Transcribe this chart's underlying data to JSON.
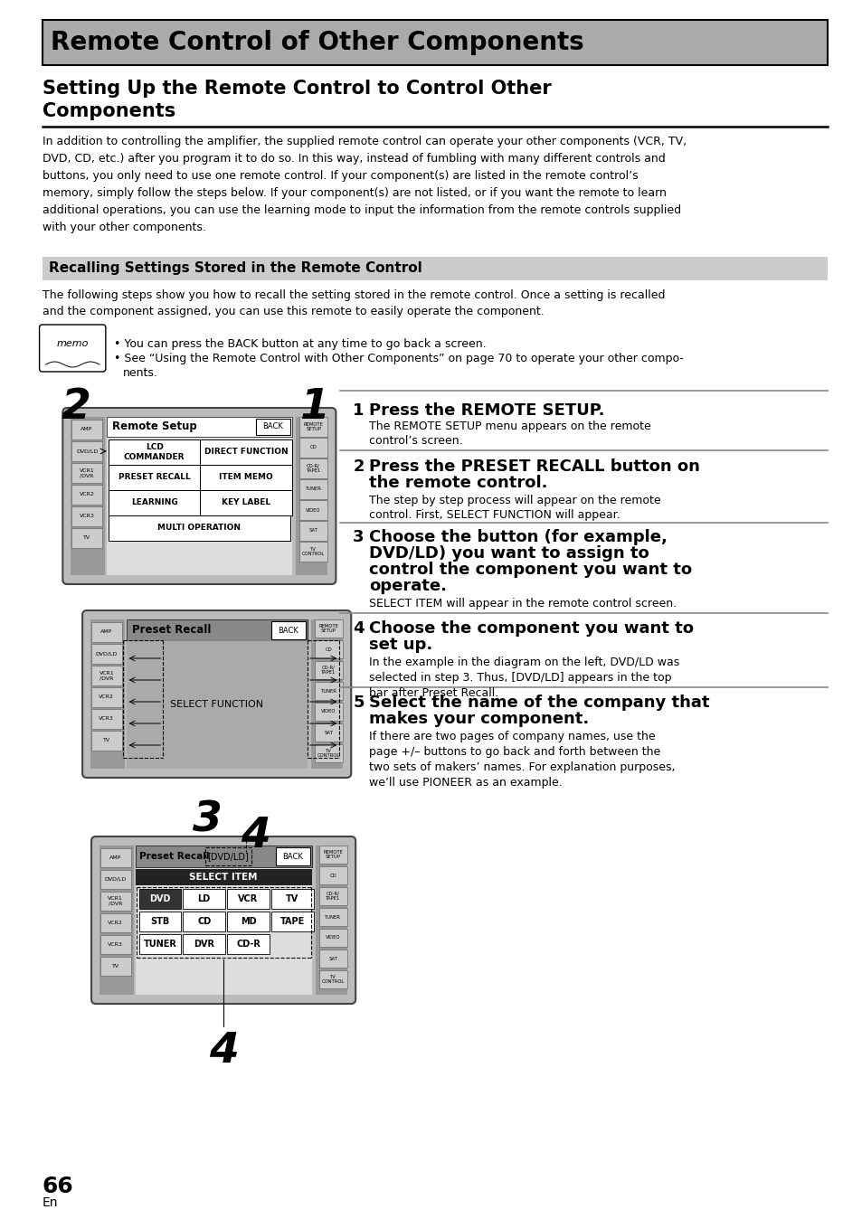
{
  "title": "Remote Control of Other Components",
  "section_title": "Recalling Settings Stored in the Remote Control",
  "body_text_lines": [
    "In addition to controlling the amplifier, the supplied remote control can operate your other components (VCR, TV,",
    "DVD, CD, etc.) after you program it to do so. In this way, instead of fumbling with many different controls and",
    "buttons, you only need to use one remote control. If your component(s) are listed in the remote control’s",
    "memory, simply follow the steps below. If your component(s) are not listed, or if you want the remote to learn",
    "additional operations, you can use the learning mode to input the information from the remote controls supplied",
    "with your other components."
  ],
  "section_desc_lines": [
    "The following steps show you how to recall the setting stored in the remote control. Once a setting is recalled",
    "and the component assigned, you can use this remote to easily operate the component."
  ],
  "memo_bullet1": "You can press the BACK button at any time to go back a screen.",
  "memo_bullet2_a": "See “Using the Remote Control with Other Components” on page 70 to operate your other compo-",
  "memo_bullet2_b": "nents.",
  "step1_head": "Press the REMOTE SETUP.",
  "step1_desc1": "The REMOTE SETUP menu appears on the remote",
  "step1_desc2": "control’s screen.",
  "step2_head1": "Press the PRESET RECALL button on",
  "step2_head2": "the remote control.",
  "step2_desc1": "The step by step process will appear on the remote",
  "step2_desc2": "control. First, SELECT FUNCTION will appear.",
  "step3_head1": "Choose the button (for example,",
  "step3_head2": "DVD/LD) you want to assign to",
  "step3_head3": "control the component you want to",
  "step3_head4": "operate.",
  "step3_desc": "SELECT ITEM will appear in the remote control screen.",
  "step4_head1": "Choose the component you want to",
  "step4_head2": "set up.",
  "step4_desc1": "In the example in the diagram on the left, DVD/LD was",
  "step4_desc2": "selected in step 3. Thus, [DVD/LD] appears in the top",
  "step4_desc3": "bar after Preset Recall.",
  "step5_head1": "Select the name of the company that",
  "step5_head2": "makes your component.",
  "step5_desc1": "If there are two pages of company names, use the",
  "step5_desc2": "page +/– buttons to go back and forth between the",
  "step5_desc3": "two sets of makers’ names. For explanation purposes,",
  "step5_desc4": "we’ll use PIONEER as an example.",
  "page_number": "66",
  "bg_color": "#ffffff",
  "title_bg": "#aaaaaa",
  "section_bg": "#cccccc"
}
